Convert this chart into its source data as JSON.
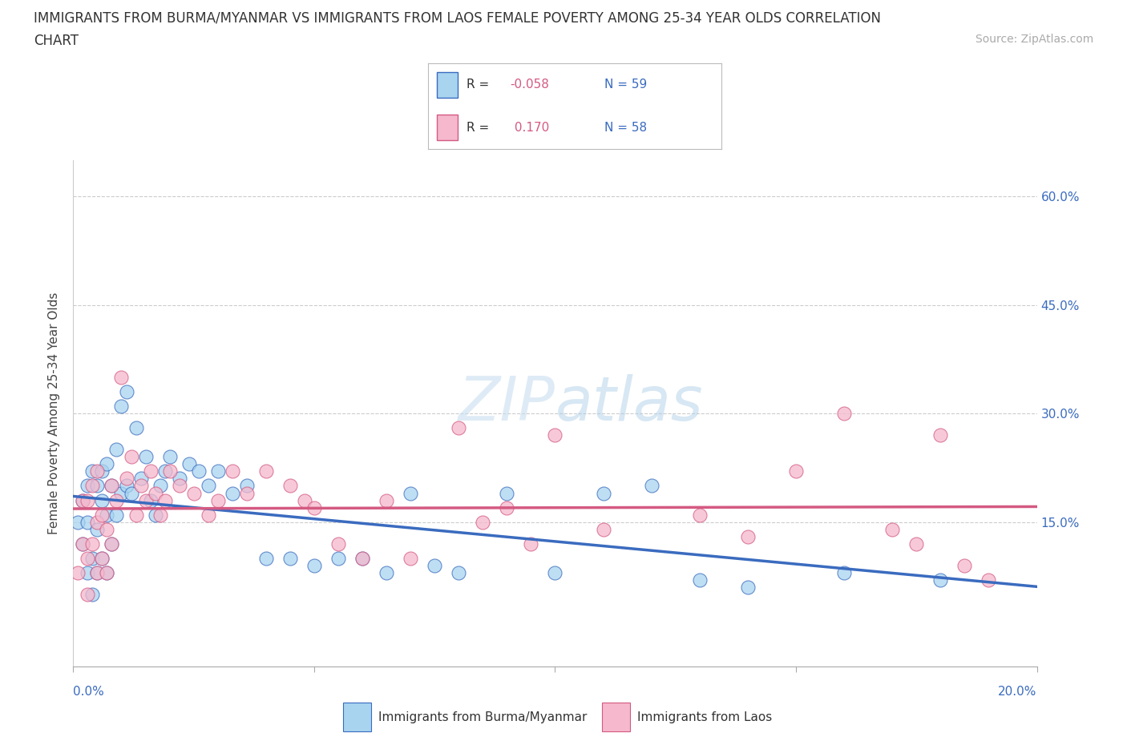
{
  "title_line1": "IMMIGRANTS FROM BURMA/MYANMAR VS IMMIGRANTS FROM LAOS FEMALE POVERTY AMONG 25-34 YEAR OLDS CORRELATION",
  "title_line2": "CHART",
  "source": "Source: ZipAtlas.com",
  "ylabel": "Female Poverty Among 25-34 Year Olds",
  "xlim": [
    0.0,
    0.2
  ],
  "ylim": [
    -0.05,
    0.65
  ],
  "yticks": [
    0.15,
    0.3,
    0.45,
    0.6
  ],
  "xticks": [
    0.0,
    0.05,
    0.1,
    0.15,
    0.2
  ],
  "blue_R": -0.058,
  "blue_N": 59,
  "pink_R": 0.17,
  "pink_N": 58,
  "blue_color": "#a8d4f0",
  "pink_color": "#f5b8cc",
  "blue_line_color": "#3a6bbf",
  "pink_line_color": "#d45a82",
  "watermark": "ZIPatlas",
  "background_color": "#ffffff",
  "legend_label_blue": "Immigrants from Burma/Myanmar",
  "legend_label_pink": "Immigrants from Laos",
  "blue_x": [
    0.001,
    0.002,
    0.002,
    0.003,
    0.003,
    0.003,
    0.004,
    0.004,
    0.004,
    0.005,
    0.005,
    0.005,
    0.006,
    0.006,
    0.006,
    0.007,
    0.007,
    0.007,
    0.008,
    0.008,
    0.009,
    0.009,
    0.01,
    0.01,
    0.011,
    0.011,
    0.012,
    0.013,
    0.014,
    0.015,
    0.016,
    0.017,
    0.018,
    0.019,
    0.02,
    0.022,
    0.024,
    0.026,
    0.028,
    0.03,
    0.033,
    0.036,
    0.04,
    0.045,
    0.05,
    0.055,
    0.06,
    0.065,
    0.07,
    0.075,
    0.08,
    0.09,
    0.1,
    0.11,
    0.12,
    0.13,
    0.14,
    0.16,
    0.18
  ],
  "blue_y": [
    0.15,
    0.12,
    0.18,
    0.08,
    0.15,
    0.2,
    0.05,
    0.1,
    0.22,
    0.08,
    0.14,
    0.2,
    0.1,
    0.18,
    0.22,
    0.08,
    0.16,
    0.23,
    0.12,
    0.2,
    0.16,
    0.25,
    0.19,
    0.31,
    0.2,
    0.33,
    0.19,
    0.28,
    0.21,
    0.24,
    0.18,
    0.16,
    0.2,
    0.22,
    0.24,
    0.21,
    0.23,
    0.22,
    0.2,
    0.22,
    0.19,
    0.2,
    0.1,
    0.1,
    0.09,
    0.1,
    0.1,
    0.08,
    0.19,
    0.09,
    0.08,
    0.19,
    0.08,
    0.19,
    0.2,
    0.07,
    0.06,
    0.08,
    0.07
  ],
  "pink_x": [
    0.001,
    0.002,
    0.002,
    0.003,
    0.003,
    0.003,
    0.004,
    0.004,
    0.005,
    0.005,
    0.005,
    0.006,
    0.006,
    0.007,
    0.007,
    0.008,
    0.008,
    0.009,
    0.01,
    0.011,
    0.012,
    0.013,
    0.014,
    0.015,
    0.016,
    0.017,
    0.018,
    0.019,
    0.02,
    0.022,
    0.025,
    0.028,
    0.03,
    0.033,
    0.036,
    0.04,
    0.045,
    0.048,
    0.05,
    0.055,
    0.06,
    0.065,
    0.07,
    0.08,
    0.085,
    0.09,
    0.095,
    0.1,
    0.11,
    0.13,
    0.14,
    0.15,
    0.16,
    0.17,
    0.175,
    0.18,
    0.185,
    0.19
  ],
  "pink_y": [
    0.08,
    0.12,
    0.18,
    0.05,
    0.1,
    0.18,
    0.12,
    0.2,
    0.08,
    0.15,
    0.22,
    0.1,
    0.16,
    0.08,
    0.14,
    0.12,
    0.2,
    0.18,
    0.35,
    0.21,
    0.24,
    0.16,
    0.2,
    0.18,
    0.22,
    0.19,
    0.16,
    0.18,
    0.22,
    0.2,
    0.19,
    0.16,
    0.18,
    0.22,
    0.19,
    0.22,
    0.2,
    0.18,
    0.17,
    0.12,
    0.1,
    0.18,
    0.1,
    0.28,
    0.15,
    0.17,
    0.12,
    0.27,
    0.14,
    0.16,
    0.13,
    0.22,
    0.3,
    0.14,
    0.12,
    0.27,
    0.09,
    0.07
  ]
}
